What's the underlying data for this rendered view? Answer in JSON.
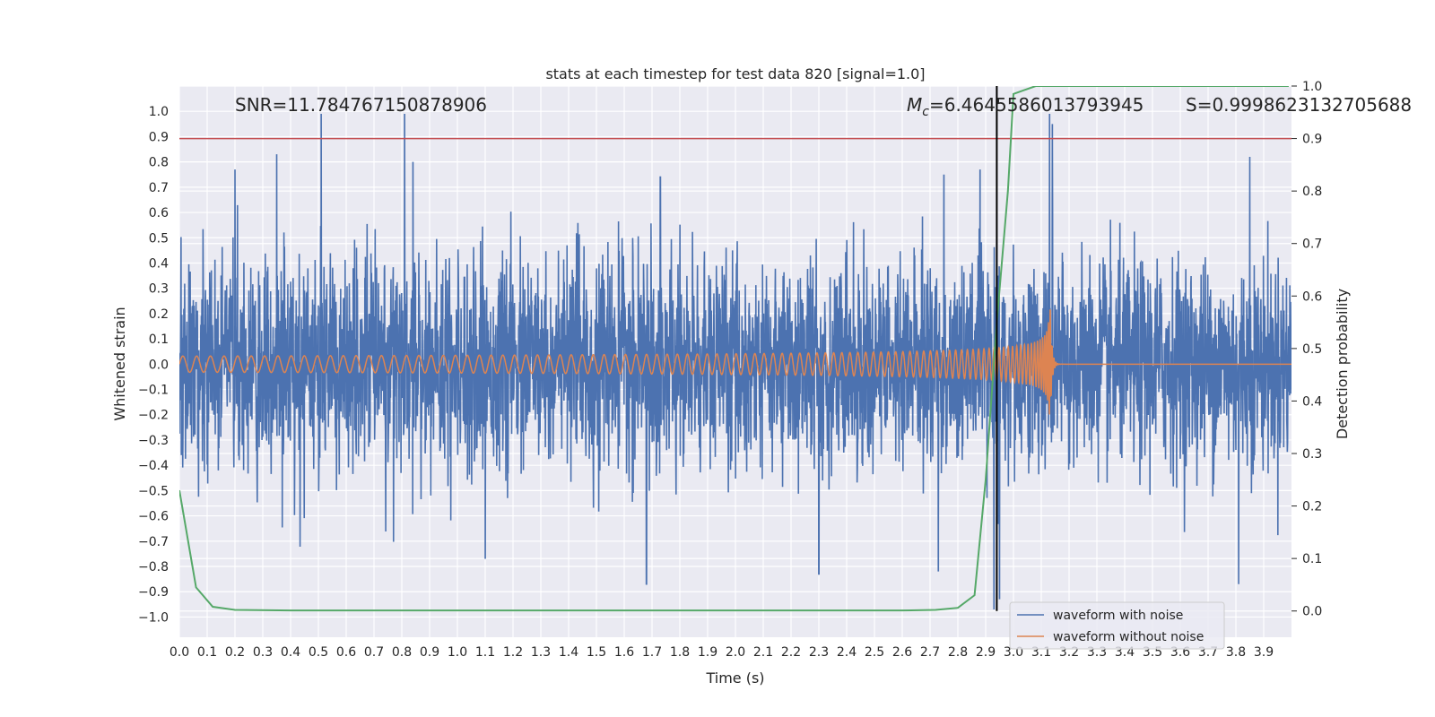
{
  "chart_data": {
    "type": "line",
    "title": "stats at each timestep for test data 820 [signal=1.0]",
    "xlabel": "Time (s)",
    "ylabel": "Whitened strain",
    "y2label": "Detection probability",
    "xlim": [
      0.0,
      4.0
    ],
    "ylim": [
      -1.08,
      1.1
    ],
    "y2lim": [
      -0.05,
      1.0
    ],
    "x_ticks": [
      0.0,
      0.1,
      0.2,
      0.3,
      0.4,
      0.5,
      0.6,
      0.7,
      0.8,
      0.9,
      1.0,
      1.1,
      1.2,
      1.3,
      1.4,
      1.5,
      1.6,
      1.7,
      1.8,
      1.9,
      2.0,
      2.1,
      2.2,
      2.3,
      2.4,
      2.5,
      2.6,
      2.7,
      2.8,
      2.9,
      3.0,
      3.1,
      3.2,
      3.3,
      3.4,
      3.5,
      3.6,
      3.7,
      3.8,
      3.9
    ],
    "y_ticks": [
      1.0,
      0.9,
      0.8,
      0.7,
      0.6,
      0.5,
      0.4,
      0.3,
      0.2,
      0.1,
      0.0,
      -0.1,
      -0.2,
      -0.3,
      -0.4,
      -0.5,
      -0.6,
      -0.7,
      -0.8,
      -0.9,
      -1.0
    ],
    "y2_ticks": [
      1.0,
      0.9,
      0.8,
      0.7,
      0.6,
      0.5,
      0.4,
      0.3,
      0.2,
      0.1,
      0.0
    ],
    "grid": true,
    "legend_position": "lower-right",
    "annotations": {
      "snr": "SNR=11.784767150878906",
      "mc_symbol": "M",
      "mc_subscript": "c",
      "mc_value": "=6.4645586013793945",
      "s": "S=0.9998623132705688"
    },
    "threshold_line": {
      "y": 0.9,
      "axis": "y2",
      "color": "#c44e52"
    },
    "event_line": {
      "x": 2.94,
      "color": "#000000"
    },
    "series": [
      {
        "name": "waveform with noise",
        "axis": "y",
        "color": "#4c72b0",
        "kind": "noise",
        "amplitude_std": 0.2,
        "peaks_high": [
          [
            0.51,
            0.99
          ],
          [
            0.81,
            0.99
          ],
          [
            0.35,
            0.83
          ],
          [
            0.2,
            0.77
          ],
          [
            0.84,
            0.8
          ],
          [
            3.13,
            0.99
          ],
          [
            3.14,
            0.95
          ],
          [
            3.85,
            0.82
          ],
          [
            1.73,
            0.74
          ],
          [
            2.75,
            0.75
          ],
          [
            2.88,
            0.77
          ]
        ],
        "peaks_low": [
          [
            2.93,
            -0.97
          ],
          [
            2.95,
            -0.93
          ],
          [
            3.81,
            -0.87
          ],
          [
            1.68,
            -0.87
          ],
          [
            2.3,
            -0.83
          ],
          [
            2.73,
            -0.82
          ],
          [
            1.1,
            -0.77
          ]
        ]
      },
      {
        "name": "waveform without noise",
        "axis": "y",
        "color": "#dd8452",
        "kind": "chirp",
        "merger_time": 3.13,
        "amplitude_start": 0.032,
        "amplitude_peak": 0.33,
        "trough_peak": -0.3,
        "freq_start": 20.0,
        "freq_merger": 150.0
      },
      {
        "name": "detection probability",
        "axis": "y2",
        "color": "#55a868",
        "kind": "line",
        "x": [
          0.0,
          0.06,
          0.12,
          0.2,
          0.4,
          1.0,
          1.6,
          2.2,
          2.6,
          2.72,
          2.8,
          2.86,
          2.9,
          2.94,
          2.98,
          3.0,
          3.08,
          3.2,
          3.5,
          3.99
        ],
        "y": [
          0.23,
          0.045,
          0.008,
          0.002,
          0.001,
          0.001,
          0.001,
          0.001,
          0.001,
          0.002,
          0.006,
          0.03,
          0.25,
          0.55,
          0.8,
          0.985,
          1.0,
          1.0,
          1.0,
          1.0
        ]
      }
    ]
  }
}
